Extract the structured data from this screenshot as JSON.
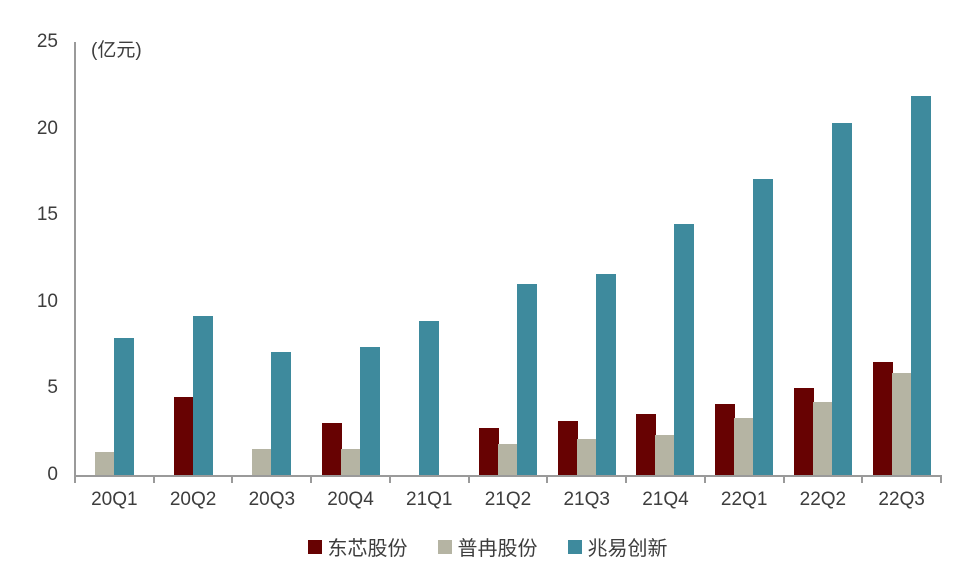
{
  "chart_data": {
    "type": "bar",
    "title": "",
    "unit_label": "(亿元)",
    "categories": [
      "20Q1",
      "20Q2",
      "20Q3",
      "20Q4",
      "21Q1",
      "21Q2",
      "21Q3",
      "21Q4",
      "22Q1",
      "22Q2",
      "22Q3"
    ],
    "series": [
      {
        "name": "东芯股份",
        "color": "#670202",
        "values": [
          null,
          4.5,
          null,
          3.0,
          null,
          2.7,
          3.1,
          3.5,
          4.1,
          5.0,
          6.5
        ]
      },
      {
        "name": "普冉股份",
        "color": "#b5b4a3",
        "values": [
          1.3,
          null,
          1.5,
          1.5,
          null,
          1.8,
          2.1,
          2.3,
          3.3,
          4.2,
          5.9
        ]
      },
      {
        "name": "兆易创新",
        "color": "#3e8a9d",
        "values": [
          7.9,
          9.2,
          7.1,
          7.4,
          8.9,
          11.0,
          11.6,
          14.5,
          17.1,
          20.3,
          21.9
        ]
      }
    ],
    "ylabel": "",
    "xlabel": "",
    "ylim": [
      0,
      25
    ],
    "y_tick_interval": 5,
    "y_tick_labels": [
      "0",
      "5",
      "10",
      "15",
      "20",
      "25"
    ],
    "grid": false,
    "legend_position": "bottom",
    "axis_color": "#9a9a9a",
    "text_color": "#3d3d3d"
  }
}
